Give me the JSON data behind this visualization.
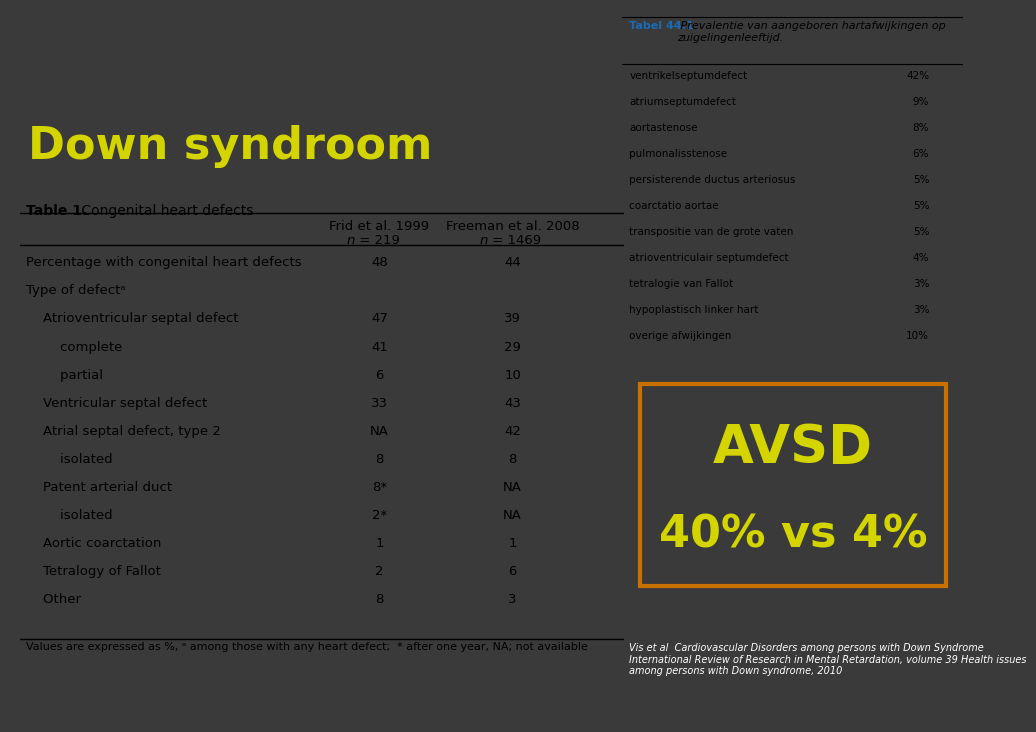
{
  "bg_color": "#3a3a3a",
  "title": "Down syndroom",
  "title_color": "#d4d400",
  "title_fontsize": 32,
  "table_title_bold": "Table 1.",
  "table_title_normal": " Congenital heart defects",
  "col_headers": [
    "",
    "Frid et al. 1999",
    "Freeman et al. 2008"
  ],
  "col_subheaders": [
    "",
    "n = 219",
    "n = 1469"
  ],
  "rows": [
    [
      "Percentage with congenital heart defects",
      "48",
      "44"
    ],
    [
      "Type of defectᵃ",
      "",
      ""
    ],
    [
      "    Atrioventricular septal defect",
      "47",
      "39"
    ],
    [
      "        complete",
      "41",
      "29"
    ],
    [
      "        partial",
      "6",
      "10"
    ],
    [
      "    Ventricular septal defect",
      "33",
      "43"
    ],
    [
      "    Atrial septal defect, type 2",
      "NA",
      "42"
    ],
    [
      "        isolated",
      "8",
      "8"
    ],
    [
      "    Patent arterial duct",
      "8*",
      "NA"
    ],
    [
      "        isolated",
      "2*",
      "NA"
    ],
    [
      "    Aortic coarctation",
      "1",
      "1"
    ],
    [
      "    Tetralogy of Fallot",
      "2",
      "6"
    ],
    [
      "    Other",
      "8",
      "3"
    ]
  ],
  "footnote": "Values are expressed as %, ᵃ among those with any heart defect;  * after one year, NA; not available",
  "avsd_text_line1": "AVSD",
  "avsd_text_line2": "40% vs 4%",
  "avsd_color": "#d4d400",
  "avsd_box_color": "#c87000",
  "right_table_title_bold": "Tabel 44.1",
  "right_table_title_italic": " Prevalentie van aangeboren hartafwijkingen op\nzuigelingenleeftijd.",
  "right_rows": [
    [
      "ventrikelseptumdefect",
      "42%"
    ],
    [
      "atriumseptumdefect",
      "9%"
    ],
    [
      "aortastenose",
      "8%"
    ],
    [
      "pulmonalisstenose",
      "6%"
    ],
    [
      "persisterende ductus arteriosus",
      "5%"
    ],
    [
      "coarctatio aortae",
      "5%"
    ],
    [
      "transpositie van de grote vaten",
      "5%"
    ],
    [
      "atrioventriculair septumdefect",
      "4%"
    ],
    [
      "tetralogie van Fallot",
      "3%"
    ],
    [
      "hypoplastisch linker hart",
      "3%"
    ],
    [
      "overige afwijkingen",
      "10%"
    ]
  ],
  "citation": "Vis et al  Cardiovascular Disorders among persons with Down Syndrome\nInternational Review of Research in Mental Retardation, volume 39 Health issues\namong persons with Down syndrome, 2010",
  "table_bg": "#ffffff",
  "right_panel_bg": "#ffffff",
  "font_size_table": 9.5,
  "font_size_right": 8.0
}
